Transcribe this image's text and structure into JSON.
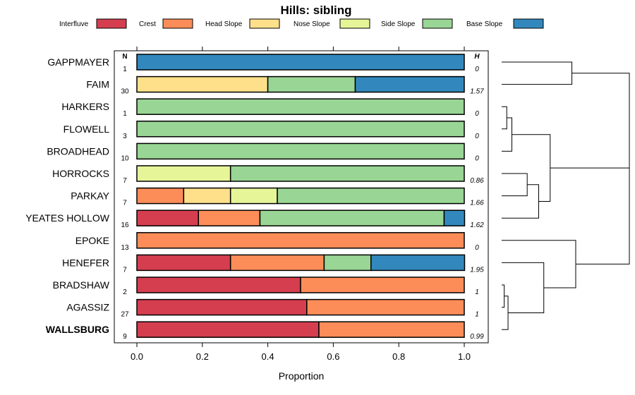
{
  "chart_data": {
    "type": "bar",
    "orientation": "horizontal",
    "stacked": true,
    "title": "Hills: sibling",
    "xlabel": "Proportion",
    "xlim": [
      0,
      1
    ],
    "xticks": [
      "0.0",
      "0.2",
      "0.4",
      "0.6",
      "0.8",
      "1.0"
    ],
    "legend_position": "top",
    "n_header": "N",
    "h_header": "H",
    "bold_category": "WALLSBURG",
    "series": [
      {
        "name": "Interfluve",
        "color": "#D53E4F"
      },
      {
        "name": "Crest",
        "color": "#FC8D59"
      },
      {
        "name": "Head Slope",
        "color": "#FEE08B"
      },
      {
        "name": "Nose Slope",
        "color": "#E6F598"
      },
      {
        "name": "Side Slope",
        "color": "#99D594"
      },
      {
        "name": "Base Slope",
        "color": "#3288BD"
      }
    ],
    "categories": [
      {
        "name": "GAPPMAYER",
        "n": "1",
        "h": "0",
        "values": [
          0,
          0,
          0,
          0,
          0,
          1
        ]
      },
      {
        "name": "FAIM",
        "n": "30",
        "h": "1.57",
        "values": [
          0,
          0,
          0.4,
          0,
          0.267,
          0.333
        ]
      },
      {
        "name": "HARKERS",
        "n": "1",
        "h": "0",
        "values": [
          0,
          0,
          0,
          0,
          1,
          0
        ]
      },
      {
        "name": "FLOWELL",
        "n": "3",
        "h": "0",
        "values": [
          0,
          0,
          0,
          0,
          1,
          0
        ]
      },
      {
        "name": "BROADHEAD",
        "n": "10",
        "h": "0",
        "values": [
          0,
          0,
          0,
          0,
          1,
          0
        ]
      },
      {
        "name": "HORROCKS",
        "n": "7",
        "h": "0.86",
        "values": [
          0,
          0,
          0,
          0.286,
          0.714,
          0
        ]
      },
      {
        "name": "PARKAY",
        "n": "7",
        "h": "1.66",
        "values": [
          0,
          0.143,
          0.143,
          0.143,
          0.571,
          0
        ]
      },
      {
        "name": "YEATES HOLLOW",
        "n": "16",
        "h": "1.62",
        "values": [
          0.188,
          0.188,
          0,
          0,
          0.5625,
          0.0625
        ]
      },
      {
        "name": "EPOKE",
        "n": "13",
        "h": "0",
        "values": [
          0,
          1,
          0,
          0,
          0,
          0
        ]
      },
      {
        "name": "HENEFER",
        "n": "7",
        "h": "1.95",
        "values": [
          0.286,
          0.286,
          0,
          0,
          0.143,
          0.286
        ]
      },
      {
        "name": "BRADSHAW",
        "n": "2",
        "h": "1",
        "values": [
          0.5,
          0.5,
          0,
          0,
          0,
          0
        ]
      },
      {
        "name": "AGASSIZ",
        "n": "27",
        "h": "1",
        "values": [
          0.519,
          0.481,
          0,
          0,
          0,
          0
        ]
      },
      {
        "name": "WALLSBURG",
        "n": "9",
        "h": "0.99",
        "values": [
          0.556,
          0.444,
          0,
          0,
          0,
          0
        ]
      }
    ],
    "dendrogram": {
      "leaves": [
        "GAPPMAYER",
        "FAIM",
        "HARKERS",
        "FLOWELL",
        "BROADHEAD",
        "HORROCKS",
        "PARKAY",
        "YEATES HOLLOW",
        "EPOKE",
        "HENEFER",
        "BRADSHAW",
        "AGASSIZ",
        "WALLSBURG"
      ],
      "merges": [
        [
          0,
          1,
          0.55
        ],
        [
          2,
          3,
          0.04
        ],
        [
          -2,
          4,
          0.08
        ],
        [
          5,
          6,
          0.2
        ],
        [
          -4,
          7,
          0.29
        ],
        [
          -3,
          -5,
          0.38
        ],
        [
          -1,
          -6,
          1.0
        ],
        [
          10,
          11,
          0.02
        ],
        [
          12,
          -8,
          0.05
        ],
        [
          9,
          -9,
          0.33
        ],
        [
          8,
          -10,
          0.58
        ],
        [
          -7,
          -11,
          1.0
        ]
      ]
    }
  }
}
